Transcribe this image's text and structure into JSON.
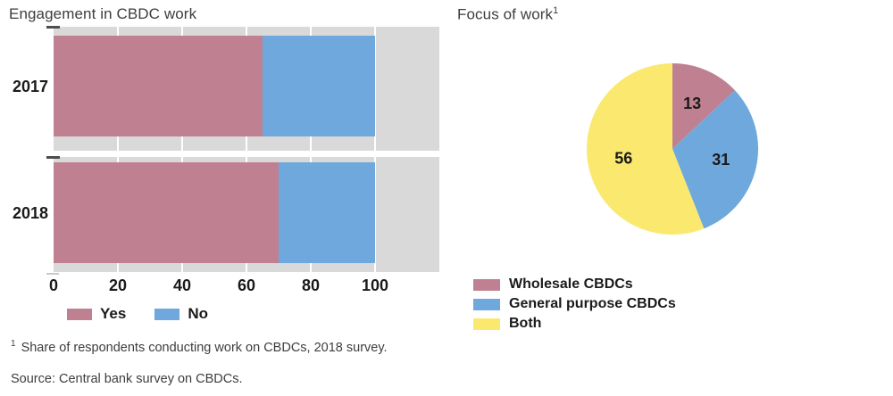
{
  "colors": {
    "yes_mauve": "#bf8192",
    "no_blue": "#6fa8dc",
    "both_yellow": "#fae96e",
    "panel_bg": "#d9d9d9",
    "gridline": "#ffffff",
    "axis_text": "#1a1a1a",
    "title_text": "#3d3d3d",
    "tick_dash": "#4d4d4d"
  },
  "chart_data": [
    {
      "id": "engagement",
      "type": "bar",
      "orientation": "horizontal",
      "stacked": true,
      "title": "Engagement in CBDC work",
      "categories": [
        "2017",
        "2018"
      ],
      "series": [
        {
          "name": "Yes",
          "color": "#bf8192",
          "values": [
            65,
            70
          ]
        },
        {
          "name": "No",
          "color": "#6fa8dc",
          "values": [
            35,
            30
          ]
        }
      ],
      "x_ticks": [
        0,
        20,
        40,
        60,
        80,
        100
      ],
      "xlim": [
        0,
        120
      ],
      "grid": true,
      "plot_bg": "#d9d9d9",
      "legend_position": "bottom"
    },
    {
      "id": "focus",
      "type": "pie",
      "title": "Focus of work",
      "title_superscript": "1",
      "start_angle_deg": 0,
      "direction": "clockwise",
      "slices": [
        {
          "label": "Wholesale CBDCs",
          "value": 13,
          "color": "#bf8192"
        },
        {
          "label": "General purpose CBDCs",
          "value": 31,
          "color": "#6fa8dc"
        },
        {
          "label": "Both",
          "value": 56,
          "color": "#fae96e"
        }
      ],
      "legend_position": "bottom-left"
    }
  ],
  "footnote": {
    "marker": "1",
    "text": "Share of respondents conducting work on CBDCs, 2018 survey."
  },
  "source": "Source: Central bank survey on CBDCs."
}
